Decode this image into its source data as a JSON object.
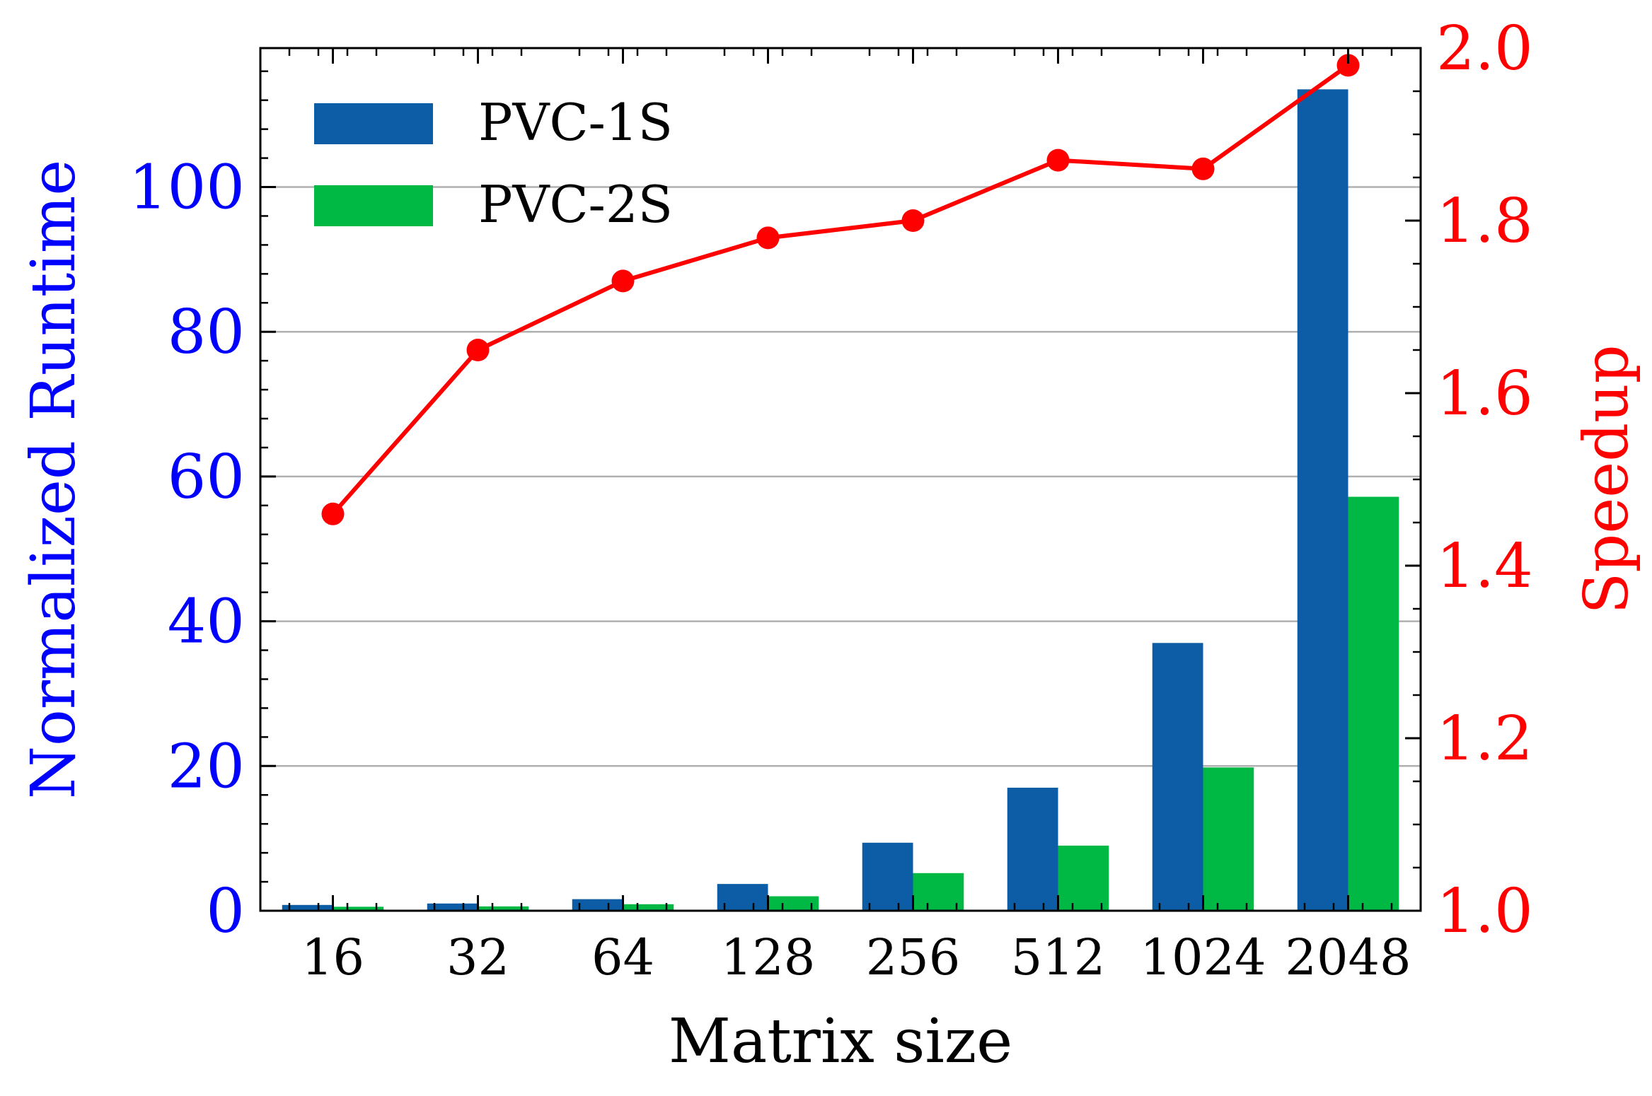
{
  "chart_data": {
    "type": "bar",
    "xlabel": "Matrix size",
    "ylabel": "Normalized Runtime",
    "y2label": "Speedup",
    "categories": [
      "16",
      "32",
      "64",
      "128",
      "256",
      "512",
      "1024",
      "2048"
    ],
    "ylim": [
      0,
      119.2
    ],
    "yticks": [
      "0",
      "20",
      "40",
      "60",
      "80",
      "100"
    ],
    "y2lim": [
      1.0,
      2.0
    ],
    "y2ticks": [
      "1.0",
      "1.2",
      "1.4",
      "1.6",
      "1.8",
      "2.0"
    ],
    "grid": "horizontal",
    "legend_position": "top-left",
    "series": [
      {
        "name": "PVC-1S",
        "axis": "left",
        "kind": "bar",
        "color": "#0c5da5",
        "values": [
          0.8,
          1.0,
          1.6,
          3.7,
          9.4,
          17.0,
          37.0,
          113.5
        ]
      },
      {
        "name": "PVC-2S",
        "axis": "left",
        "kind": "bar",
        "color": "#00b945",
        "values": [
          0.55,
          0.6,
          0.9,
          2.0,
          5.2,
          9.0,
          19.8,
          57.2
        ]
      },
      {
        "name": "Speedup",
        "axis": "right",
        "kind": "line",
        "color": "#ff0000",
        "values": [
          1.46,
          1.65,
          1.73,
          1.78,
          1.8,
          1.87,
          1.86,
          1.98
        ]
      }
    ],
    "colors": {
      "left_axis": "#0000ff",
      "right_axis": "#ff0000",
      "grid": "#b0b0b0",
      "axes": "#000000"
    }
  }
}
